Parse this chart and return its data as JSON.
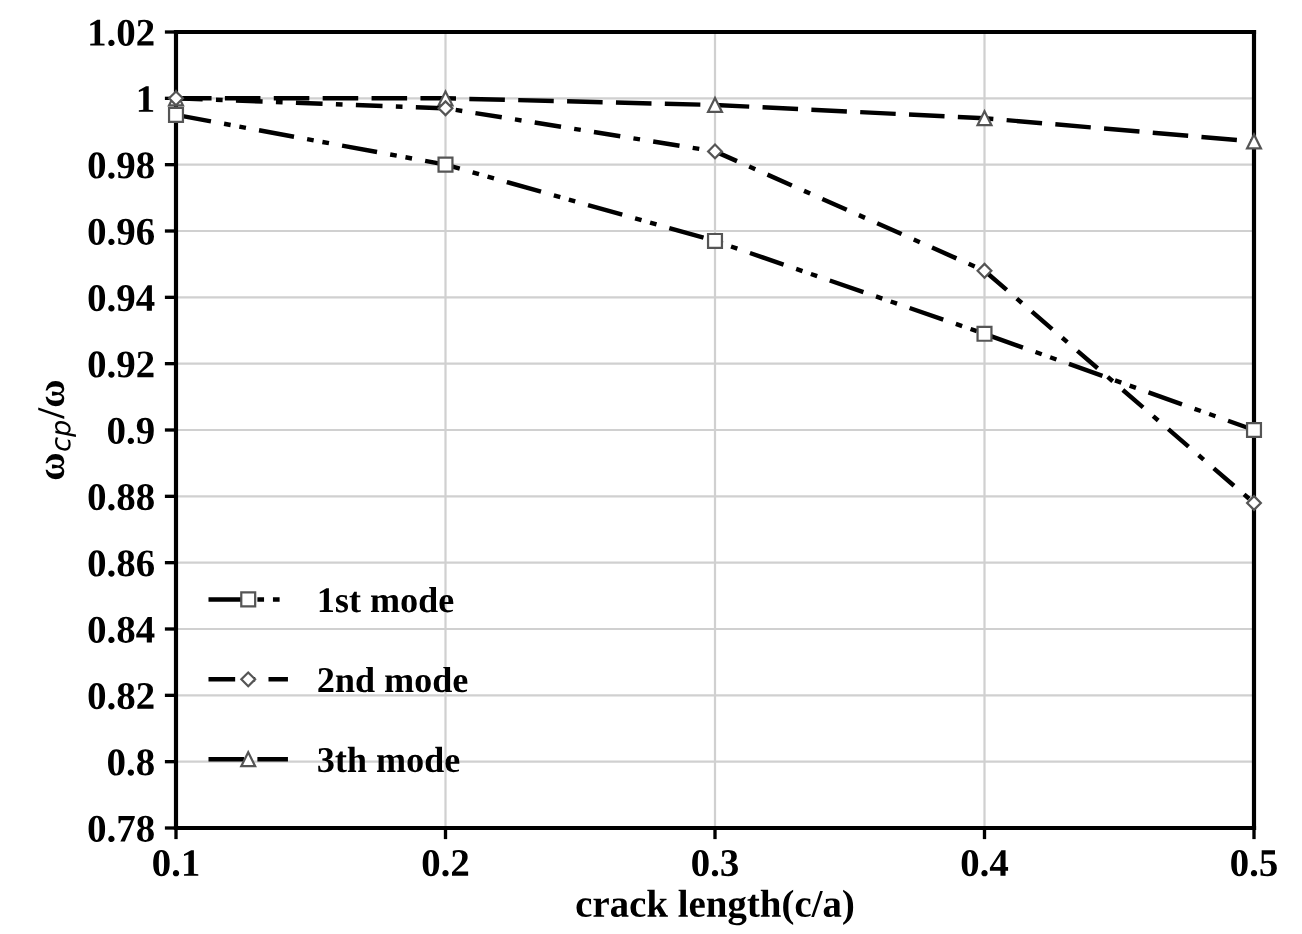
{
  "chart_data": {
    "type": "line",
    "xlabel": "crack length(c/a)",
    "ylabel": "ω$_{cp}$/ω",
    "x": [
      0.1,
      0.2,
      0.3,
      0.4,
      0.5
    ],
    "series": [
      {
        "name": "1st mode",
        "color": "#000000",
        "values": [
          0.995,
          0.98,
          0.957,
          0.929,
          0.9
        ],
        "marker": "square",
        "line_style": "dashdotdot"
      },
      {
        "name": "2nd mode",
        "color": "#000000",
        "values": [
          1.0,
          0.997,
          0.984,
          0.948,
          0.878
        ],
        "marker": "diamond",
        "line_style": "dashdot"
      },
      {
        "name": "3th mode",
        "color": "#000000",
        "values": [
          1.0,
          1.0,
          0.998,
          0.994,
          0.987
        ],
        "marker": "triangle",
        "line_style": "dashed"
      }
    ],
    "xlim": [
      0.1,
      0.5
    ],
    "xticks": [
      0.1,
      0.2,
      0.3,
      0.4,
      0.5
    ],
    "ylim": [
      0.78,
      1.02
    ],
    "yticks": [
      0.78,
      0.8,
      0.82,
      0.84,
      0.86,
      0.88,
      0.9,
      0.92,
      0.94,
      0.96,
      0.98,
      1,
      1.02
    ],
    "grid": true,
    "legend": "bottom left"
  }
}
